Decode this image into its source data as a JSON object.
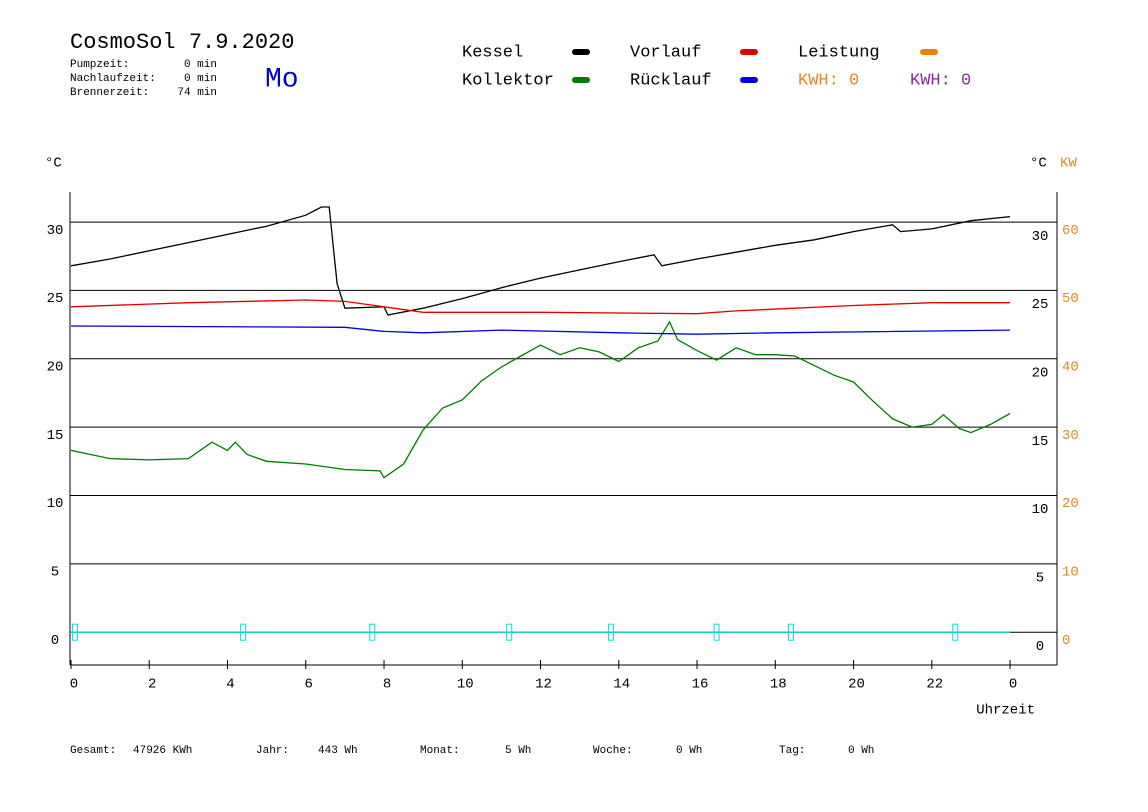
{
  "chart_data": {
    "type": "line",
    "title": "CosmoSol 7.9.2020",
    "weekday": "Mo",
    "stats": [
      {
        "label": "Pumpzeit:",
        "value": "0 min"
      },
      {
        "label": "Nachlaufzeit:",
        "value": "0 min"
      },
      {
        "label": "Brennerzeit:",
        "value": "74 min"
      }
    ],
    "kwh_labels": [
      {
        "text": "KWH: 0",
        "color": "#e08a1e"
      },
      {
        "text": "KWH: 0",
        "color": "#8b2a9a"
      }
    ],
    "y_label": "°C",
    "y2_label": "°C",
    "y2_unit": "KW",
    "x_label": "Uhrzeit",
    "xlim": [
      0,
      25.2
    ],
    "xticks": [
      0,
      2,
      4,
      6,
      8,
      10,
      12,
      14,
      16,
      18,
      20,
      22,
      {
        "value": 24,
        "label": "0"
      }
    ],
    "ylim": [
      -2.4,
      32.2
    ],
    "yticks": [
      0,
      5,
      10,
      15,
      20,
      25,
      30
    ],
    "y2lim": [
      -4.8,
      64.4
    ],
    "y2ticks": [
      0,
      10,
      20,
      30,
      40,
      50,
      60
    ],
    "grid": true,
    "series": [
      {
        "name": "Kessel",
        "color": "#000000",
        "x": [
          0,
          1,
          2,
          3,
          4,
          5,
          6,
          6.4,
          6.6,
          6.8,
          7,
          8,
          8.1,
          9,
          10,
          11,
          12,
          13,
          14,
          14.9,
          15.1,
          16,
          17,
          18,
          19,
          20,
          21,
          21.2,
          22,
          23,
          24
        ],
        "values": [
          26.8,
          27.3,
          27.9,
          28.5,
          29.1,
          29.7,
          30.5,
          31.1,
          31.1,
          25.5,
          23.7,
          23.8,
          23.2,
          23.7,
          24.4,
          25.2,
          25.9,
          26.5,
          27.1,
          27.6,
          26.8,
          27.3,
          27.8,
          28.3,
          28.7,
          29.3,
          29.8,
          29.3,
          29.5,
          30.1,
          30.4
        ]
      },
      {
        "name": "Kollektor",
        "color": "#007a00",
        "x": [
          0,
          1,
          2,
          3,
          3.6,
          4,
          4.2,
          4.5,
          5,
          6,
          7,
          7.9,
          8,
          8.5,
          9,
          9.5,
          10,
          10.5,
          11,
          11.5,
          12,
          12.5,
          13,
          13.5,
          14,
          14.5,
          15,
          15.3,
          15.5,
          16,
          16.5,
          17,
          17.5,
          18,
          18.5,
          19,
          19.5,
          20,
          20.5,
          21,
          21.5,
          22,
          22.3,
          22.7,
          23,
          23.5,
          24
        ],
        "values": [
          13.3,
          12.7,
          12.6,
          12.7,
          13.9,
          13.3,
          13.9,
          13.0,
          12.5,
          12.3,
          11.9,
          11.8,
          11.3,
          12.3,
          14.8,
          16.4,
          17.0,
          18.4,
          19.4,
          20.2,
          21.0,
          20.3,
          20.8,
          20.5,
          19.8,
          20.8,
          21.3,
          22.7,
          21.4,
          20.6,
          19.9,
          20.8,
          20.3,
          20.3,
          20.2,
          19.5,
          18.8,
          18.3,
          16.9,
          15.6,
          15.0,
          15.2,
          15.9,
          14.9,
          14.6,
          15.2,
          16.0
        ]
      },
      {
        "name": "Vorlauf",
        "color": "#e00000",
        "x": [
          0,
          3,
          6,
          7,
          8,
          9,
          12,
          16,
          17,
          20,
          22,
          24
        ],
        "values": [
          23.8,
          24.1,
          24.3,
          24.2,
          23.8,
          23.4,
          23.4,
          23.3,
          23.5,
          23.9,
          24.1,
          24.1
        ]
      },
      {
        "name": "Rücklauf",
        "color": "#0000e0",
        "x": [
          0,
          7,
          8,
          9,
          11,
          14,
          16,
          18,
          24
        ],
        "values": [
          22.4,
          22.3,
          22.0,
          21.9,
          22.1,
          21.9,
          21.8,
          21.9,
          22.1
        ]
      },
      {
        "name": "Leistung",
        "color": "#f08000",
        "line_color": "#00e0e0",
        "axis": "y2",
        "x": [
          0.1,
          4.4,
          7.7,
          11.2,
          13.8,
          16.5,
          18.4,
          22.6
        ],
        "values": [
          0,
          0,
          0,
          0,
          0,
          0,
          0,
          0
        ]
      }
    ],
    "footer": [
      {
        "label": "Gesamt:",
        "value": "47926 KWh"
      },
      {
        "label": "Jahr:",
        "value": "443 Wh"
      },
      {
        "label": "Monat:",
        "value": "5 Wh"
      },
      {
        "label": "Woche:",
        "value": "0 Wh"
      },
      {
        "label": "Tag:",
        "value": "0 Wh"
      }
    ]
  }
}
